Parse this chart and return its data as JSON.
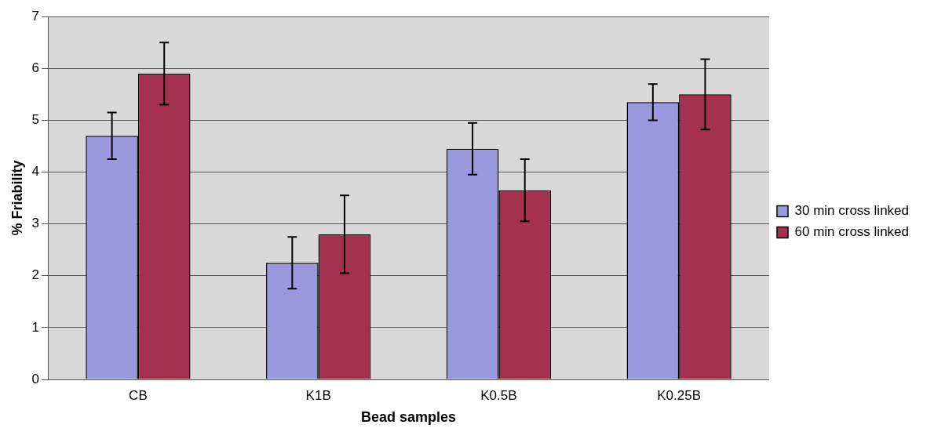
{
  "chart_data": {
    "type": "bar",
    "xlabel": "Bead samples",
    "ylabel": "% Friability",
    "categories": [
      "CB",
      "K1B",
      "K0.5B",
      "K0.25B"
    ],
    "series": [
      {
        "name": "30 min cross linked",
        "color": "#9999dd",
        "values": [
          4.7,
          2.25,
          4.45,
          5.35
        ],
        "errors": [
          0.45,
          0.5,
          0.5,
          0.35
        ]
      },
      {
        "name": "60 min cross linked",
        "color": "#a3304f",
        "values": [
          5.9,
          2.8,
          3.65,
          5.5
        ],
        "errors": [
          0.6,
          0.75,
          0.6,
          0.68
        ]
      }
    ],
    "ylim": [
      0,
      7
    ],
    "yticks": [
      0,
      1,
      2,
      3,
      4,
      5,
      6,
      7
    ],
    "grid": "y",
    "legend": "right"
  }
}
